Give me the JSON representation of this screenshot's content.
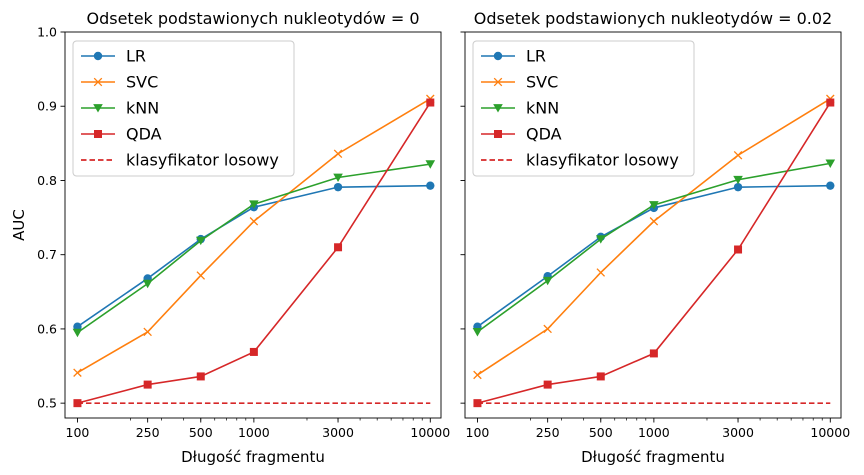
{
  "chart_data": {
    "type": "line",
    "x": [
      100,
      250,
      500,
      1000,
      3000,
      10000
    ],
    "xscale": "log",
    "xlim": [
      85,
      11500
    ],
    "ylim": [
      0.48,
      1.0
    ],
    "yticks": [
      0.5,
      0.6,
      0.7,
      0.8,
      0.9,
      1.0
    ],
    "ytick_labels": [
      "0.5",
      "0.6",
      "0.7",
      "0.8",
      "0.9",
      "1.0"
    ],
    "xticks": [
      100,
      250,
      500,
      1000,
      3000,
      10000
    ],
    "xtick_labels": [
      "100",
      "250",
      "500",
      "1000",
      "3000",
      "10000"
    ],
    "ylabel": "AUC",
    "xlabel": "Długość fragmentu",
    "legend_position": "top-left",
    "grid": false,
    "sharey": true,
    "panels": [
      {
        "title": "Odsetek podstawionych nukleotydów = 0",
        "series": [
          {
            "name": "LR",
            "color": "#1f77b4",
            "marker": "circle",
            "values": [
              0.603,
              0.668,
              0.721,
              0.764,
              0.791,
              0.793
            ]
          },
          {
            "name": "SVC",
            "color": "#ff7f0e",
            "marker": "x",
            "values": [
              0.541,
              0.596,
              0.672,
              0.745,
              0.836,
              0.91
            ]
          },
          {
            "name": "kNN",
            "color": "#2ca02c",
            "marker": "triangle-down",
            "values": [
              0.595,
              0.661,
              0.719,
              0.768,
              0.804,
              0.822
            ]
          },
          {
            "name": "QDA",
            "color": "#d62728",
            "marker": "square",
            "values": [
              0.5,
              0.525,
              0.536,
              0.569,
              0.71,
              0.905
            ]
          }
        ],
        "baseline": {
          "name": "klasyfikator losowy",
          "color": "#d62728",
          "value": 0.5,
          "style": "dashed"
        }
      },
      {
        "title": "Odsetek podstawionych nukleotydów = 0.02",
        "series": [
          {
            "name": "LR",
            "color": "#1f77b4",
            "marker": "circle",
            "values": [
              0.603,
              0.671,
              0.724,
              0.763,
              0.791,
              0.793
            ]
          },
          {
            "name": "SVC",
            "color": "#ff7f0e",
            "marker": "x",
            "values": [
              0.538,
              0.6,
              0.676,
              0.745,
              0.834,
              0.91
            ]
          },
          {
            "name": "kNN",
            "color": "#2ca02c",
            "marker": "triangle-down",
            "values": [
              0.596,
              0.665,
              0.721,
              0.767,
              0.801,
              0.823
            ]
          },
          {
            "name": "QDA",
            "color": "#d62728",
            "marker": "square",
            "values": [
              0.5,
              0.525,
              0.536,
              0.567,
              0.707,
              0.905
            ]
          }
        ],
        "baseline": {
          "name": "klasyfikator losowy",
          "color": "#d62728",
          "value": 0.5,
          "style": "dashed"
        }
      }
    ]
  }
}
